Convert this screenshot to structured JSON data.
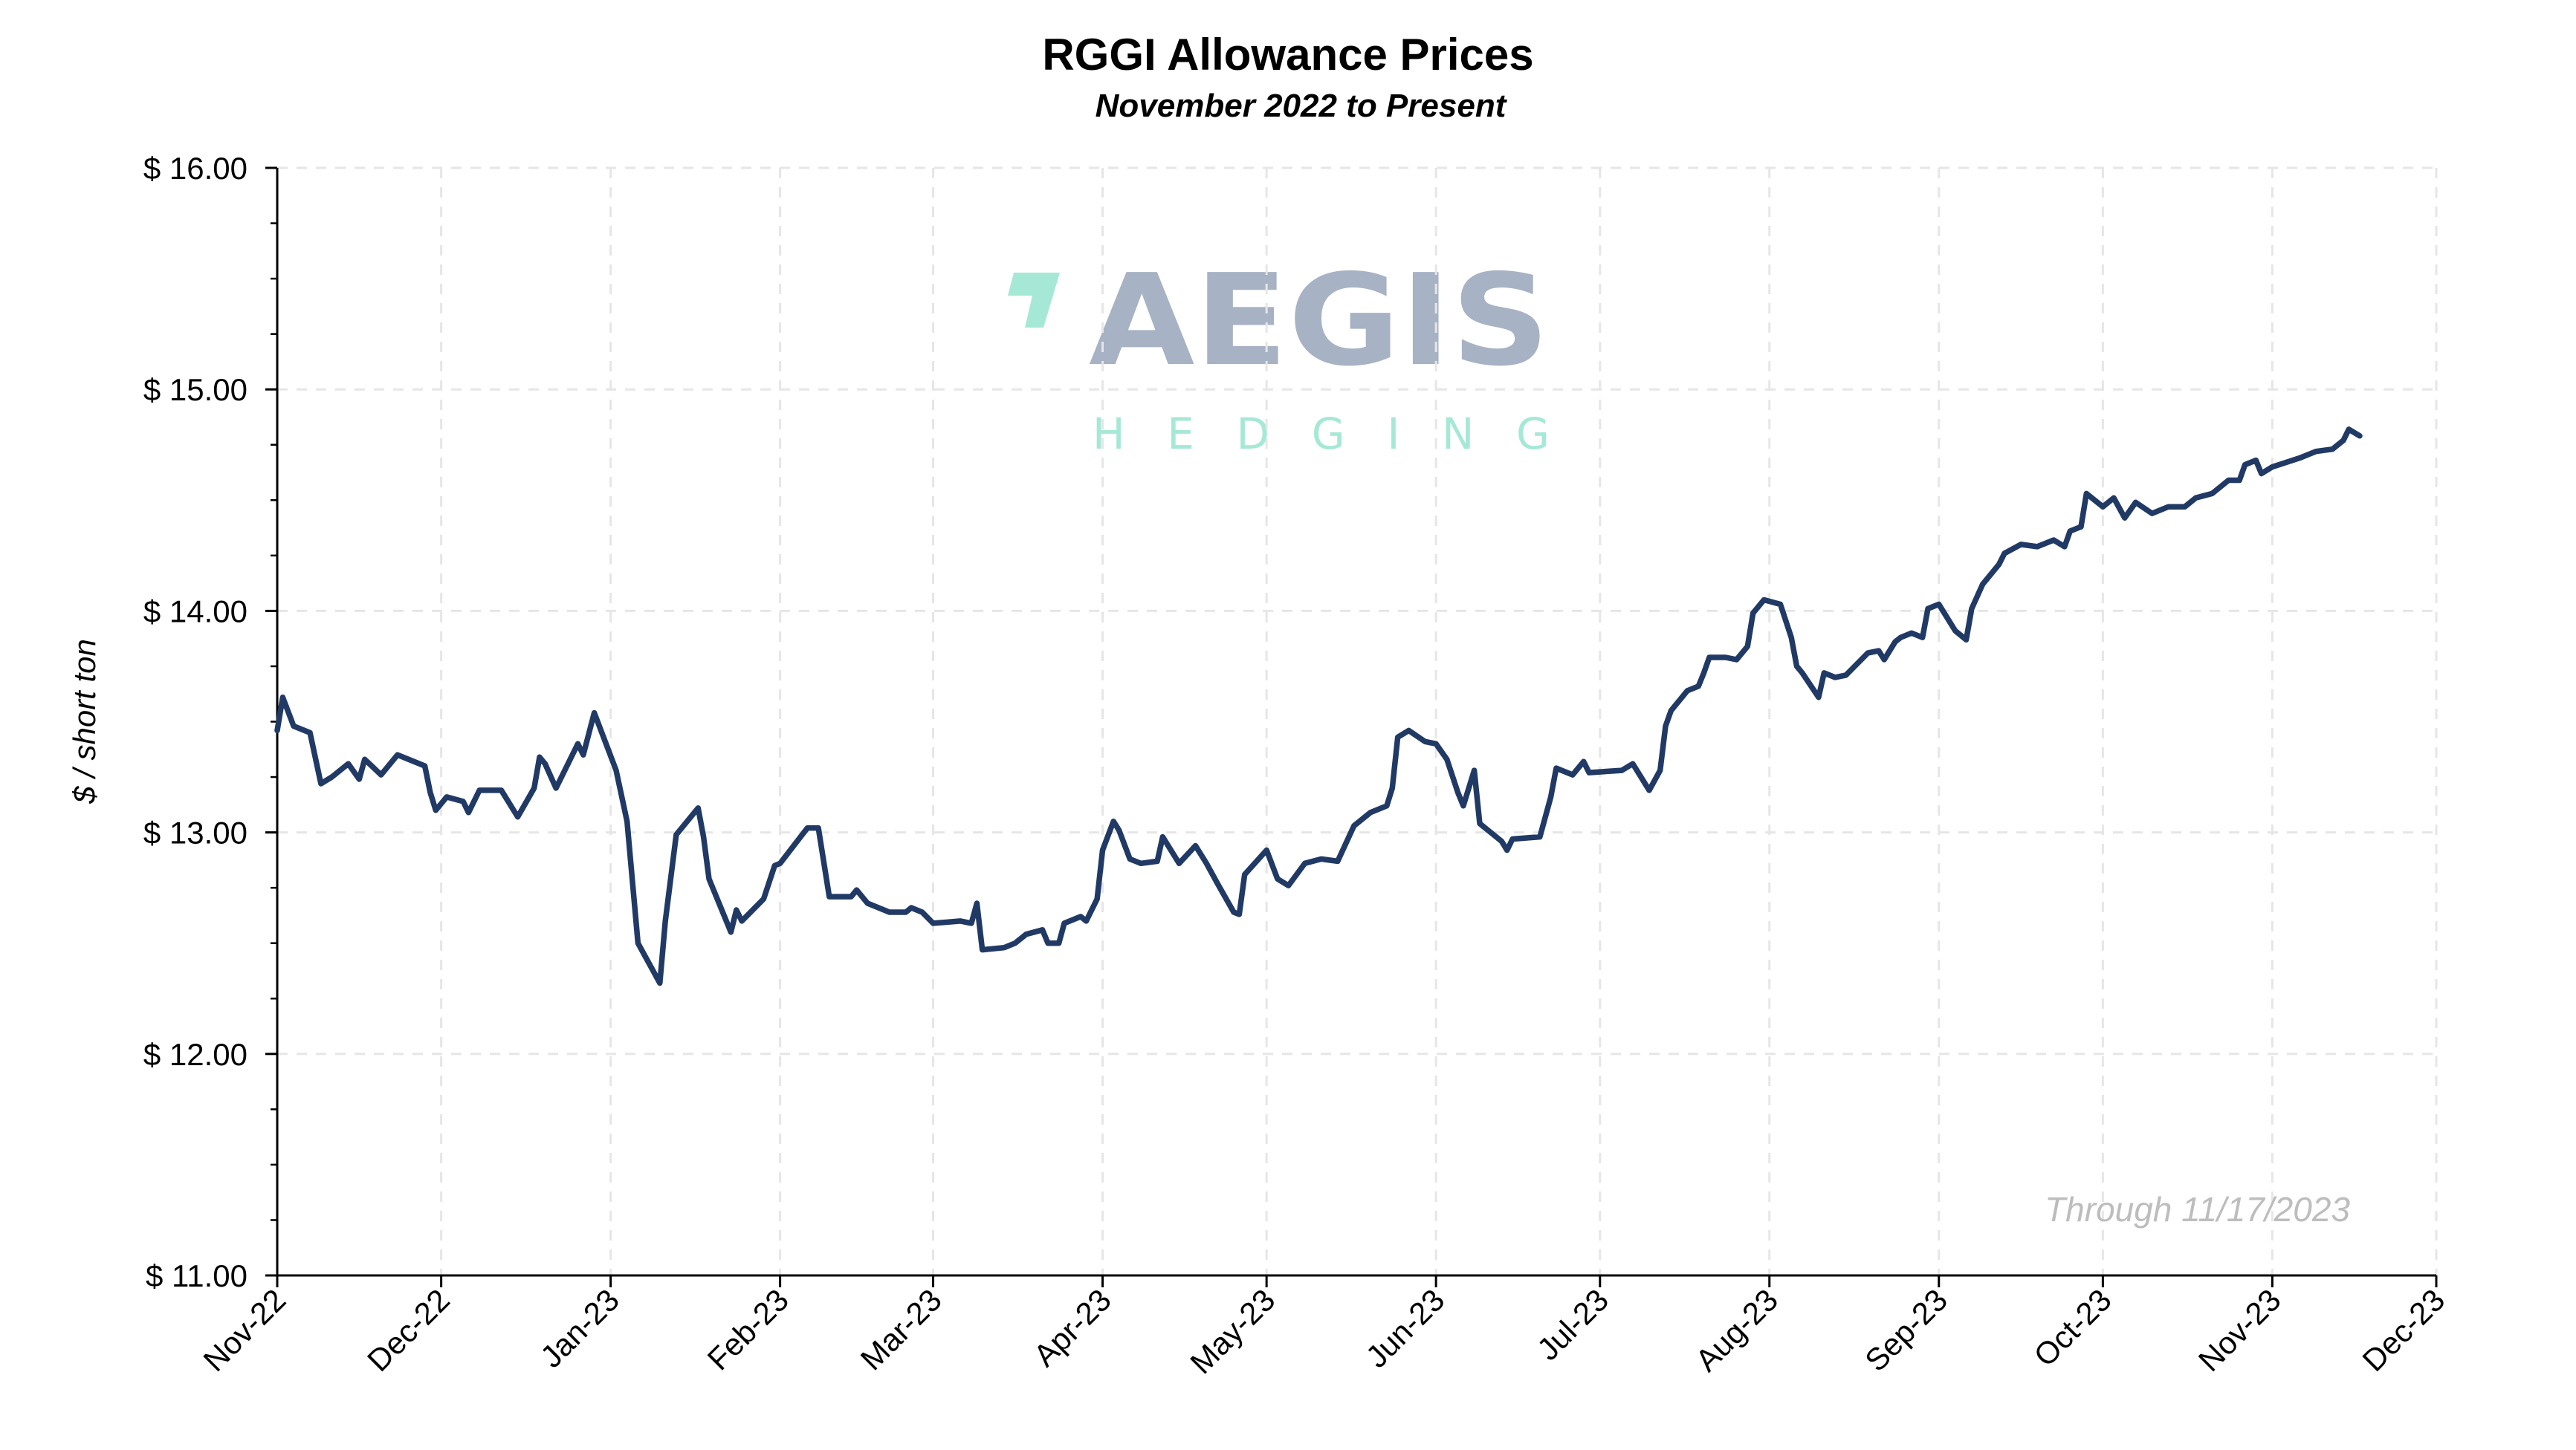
{
  "chart_data": {
    "type": "line",
    "title": "RGGI Allowance Prices",
    "subtitle": "November 2022 to Present",
    "xlabel": "",
    "ylabel": "$ / short ton",
    "annotation": "Through 11/17/2023",
    "watermark": {
      "line1": "AEGIS",
      "line2": "HEDGING"
    },
    "xlim": [
      "2022-11-01",
      "2023-12-01"
    ],
    "ylim": [
      11,
      16
    ],
    "grid": true,
    "line_color": "#213a65",
    "x_tick_labels": [
      "Nov-22",
      "Dec-22",
      "Jan-23",
      "Feb-23",
      "Mar-23",
      "Apr-23",
      "May-23",
      "Jun-23",
      "Jul-23",
      "Aug-23",
      "Sep-23",
      "Oct-23",
      "Nov-23",
      "Dec-23"
    ],
    "x_tick_dates": [
      "2022-11-01",
      "2022-12-01",
      "2023-01-01",
      "2023-02-01",
      "2023-03-01",
      "2023-04-01",
      "2023-05-01",
      "2023-06-01",
      "2023-07-01",
      "2023-08-01",
      "2023-09-01",
      "2023-10-01",
      "2023-11-01",
      "2023-12-01"
    ],
    "y_ticks": [
      11,
      12,
      13,
      14,
      15,
      16
    ],
    "y_tick_labels": [
      "$ 11.00",
      "$ 12.00",
      "$ 13.00",
      "$ 14.00",
      "$ 15.00",
      "$ 16.00"
    ],
    "series": [
      {
        "x": [
          "2022-11-01",
          "2022-11-02",
          "2022-11-04",
          "2022-11-07",
          "2022-11-09",
          "2022-11-11",
          "2022-11-14",
          "2022-11-16",
          "2022-11-17",
          "2022-11-20",
          "2022-11-23",
          "2022-11-28",
          "2022-11-29",
          "2022-11-30",
          "2022-12-02",
          "2022-12-05",
          "2022-12-06",
          "2022-12-08",
          "2022-12-12",
          "2022-12-15",
          "2022-12-18",
          "2022-12-19",
          "2022-12-20",
          "2022-12-22",
          "2022-12-26",
          "2022-12-27",
          "2022-12-29",
          "2023-01-02",
          "2023-01-04",
          "2023-01-06",
          "2023-01-10",
          "2023-01-11",
          "2023-01-13",
          "2023-01-17",
          "2023-01-18",
          "2023-01-19",
          "2023-01-23",
          "2023-01-24",
          "2023-01-25",
          "2023-01-29",
          "2023-01-31",
          "2023-02-01",
          "2023-02-06",
          "2023-02-08",
          "2023-02-10",
          "2023-02-14",
          "2023-02-15",
          "2023-02-17",
          "2023-02-21",
          "2023-02-24",
          "2023-02-25",
          "2023-02-27",
          "2023-03-01",
          "2023-03-06",
          "2023-03-08",
          "2023-03-09",
          "2023-03-10",
          "2023-03-14",
          "2023-03-16",
          "2023-03-18",
          "2023-03-21",
          "2023-03-22",
          "2023-03-24",
          "2023-03-25",
          "2023-03-28",
          "2023-03-29",
          "2023-03-31",
          "2023-04-01",
          "2023-04-03",
          "2023-04-04",
          "2023-04-06",
          "2023-04-08",
          "2023-04-11",
          "2023-04-12",
          "2023-04-15",
          "2023-04-18",
          "2023-04-20",
          "2023-04-22",
          "2023-04-25",
          "2023-04-26",
          "2023-04-27",
          "2023-05-01",
          "2023-05-03",
          "2023-05-05",
          "2023-05-08",
          "2023-05-11",
          "2023-05-14",
          "2023-05-17",
          "2023-05-20",
          "2023-05-23",
          "2023-05-24",
          "2023-05-25",
          "2023-05-27",
          "2023-05-30",
          "2023-06-01",
          "2023-06-03",
          "2023-06-05",
          "2023-06-06",
          "2023-06-08",
          "2023-06-09",
          "2023-06-13",
          "2023-06-14",
          "2023-06-15",
          "2023-06-20",
          "2023-06-22",
          "2023-06-23",
          "2023-06-26",
          "2023-06-28",
          "2023-06-29",
          "2023-07-05",
          "2023-07-07",
          "2023-07-10",
          "2023-07-12",
          "2023-07-13",
          "2023-07-14",
          "2023-07-17",
          "2023-07-19",
          "2023-07-20",
          "2023-07-21",
          "2023-07-24",
          "2023-07-26",
          "2023-07-28",
          "2023-07-29",
          "2023-07-31",
          "2023-08-03",
          "2023-08-05",
          "2023-08-06",
          "2023-08-07",
          "2023-08-10",
          "2023-08-11",
          "2023-08-13",
          "2023-08-15",
          "2023-08-17",
          "2023-08-19",
          "2023-08-21",
          "2023-08-22",
          "2023-08-24",
          "2023-08-25",
          "2023-08-27",
          "2023-08-29",
          "2023-08-30",
          "2023-09-01",
          "2023-09-04",
          "2023-09-06",
          "2023-09-07",
          "2023-09-09",
          "2023-09-12",
          "2023-09-13",
          "2023-09-16",
          "2023-09-19",
          "2023-09-22",
          "2023-09-24",
          "2023-09-25",
          "2023-09-27",
          "2023-09-28",
          "2023-10-01",
          "2023-10-03",
          "2023-10-05",
          "2023-10-07",
          "2023-10-10",
          "2023-10-13",
          "2023-10-16",
          "2023-10-18",
          "2023-10-21",
          "2023-10-24",
          "2023-10-26",
          "2023-10-27",
          "2023-10-29",
          "2023-10-30",
          "2023-11-01",
          "2023-11-06",
          "2023-11-09",
          "2023-11-12",
          "2023-11-14",
          "2023-11-15",
          "2023-11-17"
        ],
        "y": [
          13.46,
          13.61,
          13.48,
          13.45,
          13.22,
          13.25,
          13.31,
          13.24,
          13.33,
          13.26,
          13.35,
          13.3,
          13.18,
          13.1,
          13.16,
          13.14,
          13.09,
          13.19,
          13.19,
          13.07,
          13.2,
          13.34,
          13.31,
          13.2,
          13.4,
          13.35,
          13.54,
          13.28,
          13.05,
          12.5,
          12.32,
          12.6,
          12.99,
          13.11,
          12.98,
          12.79,
          12.55,
          12.65,
          12.6,
          12.7,
          12.85,
          12.86,
          13.02,
          13.02,
          12.71,
          12.71,
          12.74,
          12.68,
          12.64,
          12.64,
          12.66,
          12.64,
          12.59,
          12.6,
          12.59,
          12.68,
          12.47,
          12.48,
          12.5,
          12.54,
          12.56,
          12.5,
          12.5,
          12.59,
          12.62,
          12.6,
          12.7,
          12.92,
          13.05,
          13.01,
          12.88,
          12.86,
          12.87,
          12.98,
          12.86,
          12.94,
          12.86,
          12.77,
          12.64,
          12.63,
          12.81,
          12.92,
          12.79,
          12.76,
          12.86,
          12.88,
          12.87,
          13.03,
          13.09,
          13.12,
          13.2,
          13.43,
          13.46,
          13.41,
          13.4,
          13.33,
          13.18,
          13.12,
          13.28,
          13.04,
          12.96,
          12.92,
          12.97,
          12.98,
          13.16,
          13.29,
          13.26,
          13.32,
          13.27,
          13.28,
          13.31,
          13.19,
          13.28,
          13.48,
          13.55,
          13.64,
          13.66,
          13.72,
          13.79,
          13.79,
          13.78,
          13.84,
          13.99,
          14.05,
          14.03,
          13.88,
          13.75,
          13.72,
          13.61,
          13.72,
          13.7,
          13.71,
          13.76,
          13.81,
          13.82,
          13.78,
          13.86,
          13.88,
          13.9,
          13.88,
          14.01,
          14.03,
          13.91,
          13.87,
          14.01,
          14.12,
          14.21,
          14.26,
          14.3,
          14.29,
          14.32,
          14.29,
          14.36,
          14.38,
          14.53,
          14.47,
          14.51,
          14.42,
          14.49,
          14.44,
          14.47,
          14.47,
          14.51,
          14.53,
          14.59,
          14.59,
          14.66,
          14.68,
          14.62,
          14.65,
          14.69,
          14.72,
          14.73,
          14.77,
          14.82,
          14.79
        ]
      }
    ]
  }
}
